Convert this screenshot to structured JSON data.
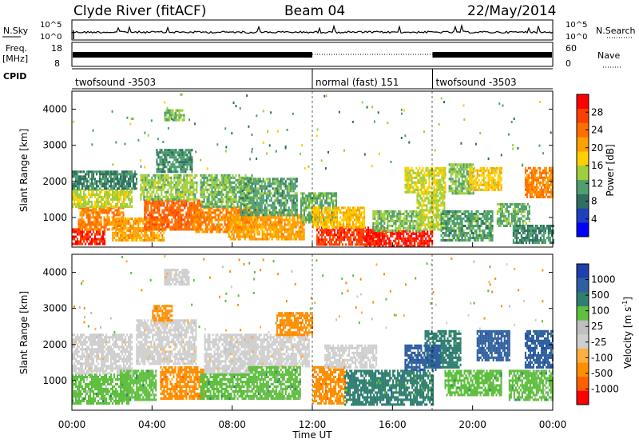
{
  "header": {
    "station": "Clyde River (fitACF)",
    "beam": "Beam 04",
    "date": "22/May/2014"
  },
  "noise_panel": {
    "left_label": "N.Sky",
    "right_label": "N.Search",
    "left_ticks": [
      "10^5",
      "10^0"
    ],
    "right_ticks": [
      "10^5",
      "10^0"
    ]
  },
  "freq_panel": {
    "left_label": "Freq.",
    "left_unit": "[MHz]",
    "left_ticks": [
      "18",
      "8"
    ],
    "right_label": "Nave",
    "right_ticks": [
      "60",
      "0"
    ]
  },
  "cpid": {
    "label": "CPID",
    "segments": [
      {
        "name": "twofsound -3503",
        "start_hour": 0,
        "end_hour": 12
      },
      {
        "name": "normal (fast) 151",
        "start_hour": 12,
        "end_hour": 18
      },
      {
        "name": "twofsound -3503",
        "start_hour": 18,
        "end_hour": 24
      }
    ]
  },
  "power_panel": {
    "ylabel": "Slant Range [km]",
    "yticks": [
      "4000",
      "3000",
      "2000",
      "1000"
    ],
    "colorbar_label": "Power [dB]",
    "colorbar_ticks": [
      "28",
      "24",
      "20",
      "16",
      "12",
      "8",
      "4"
    ],
    "colors": [
      "#0000ff",
      "#1f3fbf",
      "#2f6f5f",
      "#4f9f6f",
      "#9fcf3f",
      "#ffcf00",
      "#ff9f00",
      "#ff6f00",
      "#ff3f00",
      "#ff0000"
    ]
  },
  "velocity_panel": {
    "ylabel": "Slant Range [km]",
    "yticks": [
      "4000",
      "3000",
      "2000",
      "1000"
    ],
    "colorbar_label": "Velocity [m s",
    "colorbar_unit_sup": "-1",
    "colorbar_unit_end": "]",
    "colorbar_ticks": [
      "1000",
      "500",
      "100",
      "25",
      "-25",
      "-100",
      "-500",
      "-1000"
    ],
    "colors": [
      "#1f3faf",
      "#2f5f9f",
      "#2f7f6f",
      "#5fbf3f",
      "#bfbfbf",
      "#cfcfcf",
      "#ffaf3f",
      "#ff8f00",
      "#ff5f00",
      "#ff0000"
    ]
  },
  "xaxis": {
    "label": "Time UT",
    "ticks": [
      "00:00",
      "04:00",
      "08:00",
      "12:00",
      "16:00",
      "20:00",
      "00:00"
    ]
  },
  "chart_data": [
    {
      "type": "heatmap",
      "title": "Power",
      "xlabel": "Time UT",
      "ylabel": "Slant Range [km]",
      "x_range_hours": [
        0,
        24
      ],
      "ylim": [
        180,
        4500
      ],
      "colorbar_label": "Power [dB]",
      "colorbar_range": [
        0,
        30
      ],
      "features": [
        {
          "t0": 0.0,
          "t1": 1.6,
          "r0": 250,
          "r1": 700,
          "v": 28
        },
        {
          "t0": 0.3,
          "t1": 2.6,
          "r0": 700,
          "r1": 1300,
          "v": 22
        },
        {
          "t0": 0.0,
          "t1": 3.0,
          "r0": 1300,
          "r1": 1800,
          "v": 14
        },
        {
          "t0": 0.0,
          "t1": 3.2,
          "r0": 1800,
          "r1": 2300,
          "v": 8
        },
        {
          "t0": 2.0,
          "t1": 4.6,
          "r0": 400,
          "r1": 1000,
          "v": 20
        },
        {
          "t0": 3.6,
          "t1": 6.4,
          "r0": 700,
          "r1": 1500,
          "v": 24
        },
        {
          "t0": 3.4,
          "t1": 6.2,
          "r0": 1500,
          "r1": 2200,
          "v": 13
        },
        {
          "t0": 4.2,
          "t1": 6.0,
          "r0": 2300,
          "r1": 2900,
          "v": 9
        },
        {
          "t0": 4.6,
          "t1": 5.6,
          "r0": 3700,
          "r1": 4000,
          "v": 12
        },
        {
          "t0": 6.0,
          "t1": 9.2,
          "r0": 600,
          "r1": 1300,
          "v": 22
        },
        {
          "t0": 6.4,
          "t1": 9.0,
          "r0": 1300,
          "r1": 2200,
          "v": 12
        },
        {
          "t0": 7.8,
          "t1": 11.6,
          "r0": 400,
          "r1": 1100,
          "v": 20
        },
        {
          "t0": 8.4,
          "t1": 11.2,
          "r0": 1100,
          "r1": 2100,
          "v": 10
        },
        {
          "t0": 11.4,
          "t1": 13.2,
          "r0": 900,
          "r1": 1700,
          "v": 11
        },
        {
          "t0": 12.2,
          "t1": 15.6,
          "r0": 250,
          "r1": 750,
          "v": 27
        },
        {
          "t0": 12.0,
          "t1": 14.6,
          "r0": 750,
          "r1": 1300,
          "v": 18
        },
        {
          "t0": 14.6,
          "t1": 18.0,
          "r0": 250,
          "r1": 650,
          "v": 29
        },
        {
          "t0": 15.0,
          "t1": 17.4,
          "r0": 650,
          "r1": 1200,
          "v": 12
        },
        {
          "t0": 17.2,
          "t1": 18.6,
          "r0": 700,
          "r1": 1700,
          "v": 14
        },
        {
          "t0": 16.6,
          "t1": 18.6,
          "r0": 1700,
          "r1": 2400,
          "v": 15
        },
        {
          "t0": 18.4,
          "t1": 21.0,
          "r0": 400,
          "r1": 1200,
          "v": 10
        },
        {
          "t0": 18.8,
          "t1": 20.0,
          "r0": 1700,
          "r1": 2500,
          "v": 12
        },
        {
          "t0": 19.8,
          "t1": 21.4,
          "r0": 1800,
          "r1": 2400,
          "v": 17
        },
        {
          "t0": 21.2,
          "t1": 22.8,
          "r0": 800,
          "r1": 1400,
          "v": 11
        },
        {
          "t0": 22.6,
          "t1": 24.0,
          "r0": 1600,
          "r1": 2400,
          "v": 22
        },
        {
          "t0": 22.0,
          "t1": 24.0,
          "r0": 300,
          "r1": 800,
          "v": 8
        }
      ]
    },
    {
      "type": "heatmap",
      "title": "Velocity",
      "xlabel": "Time UT",
      "ylabel": "Slant Range [km]",
      "x_range_hours": [
        0,
        24
      ],
      "ylim": [
        180,
        4500
      ],
      "colorbar_label": "Velocity [m s-1]",
      "colorbar_ticks": [
        1000,
        500,
        100,
        25,
        -25,
        -100,
        -500,
        -1000
      ],
      "features": [
        {
          "t0": 0.0,
          "t1": 2.8,
          "r0": 400,
          "r1": 1200,
          "v": 200
        },
        {
          "t0": 0.0,
          "t1": 3.0,
          "r0": 1200,
          "r1": 2300,
          "v": 0
        },
        {
          "t0": 2.4,
          "t1": 4.2,
          "r0": 500,
          "r1": 1300,
          "v": 150
        },
        {
          "t0": 3.2,
          "t1": 6.2,
          "r0": 1500,
          "r1": 2700,
          "v": 0
        },
        {
          "t0": 4.0,
          "t1": 5.0,
          "r0": 2700,
          "r1": 3100,
          "v": -150
        },
        {
          "t0": 4.4,
          "t1": 6.6,
          "r0": 500,
          "r1": 1400,
          "v": -200
        },
        {
          "t0": 4.6,
          "t1": 5.8,
          "r0": 3700,
          "r1": 4100,
          "v": 0
        },
        {
          "t0": 6.6,
          "t1": 9.2,
          "r0": 1200,
          "r1": 2300,
          "v": 0
        },
        {
          "t0": 6.4,
          "t1": 8.8,
          "r0": 500,
          "r1": 1200,
          "v": 150
        },
        {
          "t0": 8.6,
          "t1": 11.8,
          "r0": 1400,
          "r1": 2300,
          "v": 0
        },
        {
          "t0": 8.8,
          "t1": 11.4,
          "r0": 500,
          "r1": 1400,
          "v": 200
        },
        {
          "t0": 10.2,
          "t1": 12.0,
          "r0": 2300,
          "r1": 2900,
          "v": -150
        },
        {
          "t0": 12.0,
          "t1": 13.6,
          "r0": 400,
          "r1": 1400,
          "v": -250
        },
        {
          "t0": 13.6,
          "t1": 18.0,
          "r0": 350,
          "r1": 1300,
          "v": 250
        },
        {
          "t0": 12.6,
          "t1": 15.2,
          "r0": 1400,
          "r1": 2000,
          "v": 0
        },
        {
          "t0": 17.6,
          "t1": 19.4,
          "r0": 1400,
          "r1": 2400,
          "v": 300
        },
        {
          "t0": 18.6,
          "t1": 21.4,
          "r0": 600,
          "r1": 1300,
          "v": 150
        },
        {
          "t0": 20.2,
          "t1": 21.8,
          "r0": 1600,
          "r1": 2400,
          "v": 700
        },
        {
          "t0": 21.8,
          "t1": 24.0,
          "r0": 500,
          "r1": 1300,
          "v": 200
        },
        {
          "t0": 22.6,
          "t1": 24.0,
          "r0": 1400,
          "r1": 2400,
          "v": 700
        },
        {
          "t0": 16.6,
          "t1": 18.4,
          "r0": 1300,
          "r1": 2000,
          "v": 600
        }
      ]
    }
  ]
}
